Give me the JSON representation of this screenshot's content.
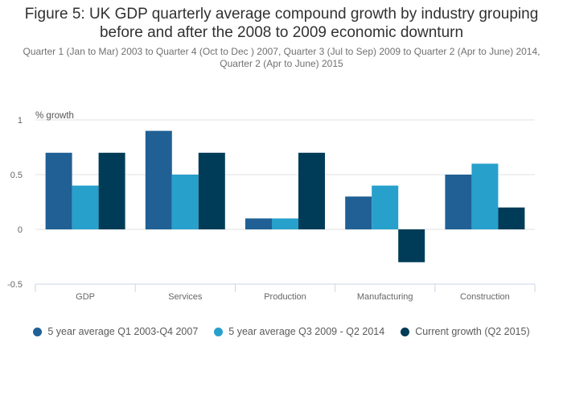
{
  "chart_data": {
    "type": "bar",
    "title": "Figure 5: UK GDP quarterly average compound growth by industry grouping before and after the 2008 to 2009 economic downturn",
    "title_lines": [
      "Figure 5: UK GDP quarterly average compound growth by industry grouping",
      "before and after the 2008 to 2009 economic downturn"
    ],
    "subtitle": "Quarter 1 (Jan to Mar) 2003 to Quarter 4 (Oct to Dec ) 2007, Quarter 3 (Jul to Sep) 2009 to Quarter 2 (Apr to June) 2014, Quarter 2 (Apr to June) 2015",
    "xlabel": "",
    "ylabel": "% growth",
    "ylim": [
      -0.5,
      1
    ],
    "yticks": [
      1,
      0.5,
      0,
      -0.5
    ],
    "ytick_labels": [
      "1",
      "0.5",
      "0",
      "-0.5"
    ],
    "grid": true,
    "legend_position": "bottom",
    "categories": [
      "GDP",
      "Services",
      "Production",
      "Manufacturing",
      "Construction"
    ],
    "series": [
      {
        "name": "5 year average Q1 2003-Q4 2007",
        "color": "#206095",
        "values": [
          0.7,
          0.9,
          0.1,
          0.3,
          0.5
        ]
      },
      {
        "name": "5 year average Q3 2009 - Q2 2014",
        "color": "#27a0cc",
        "values": [
          0.4,
          0.5,
          0.1,
          0.4,
          0.6
        ]
      },
      {
        "name": "Current growth (Q2 2015)",
        "color": "#003c57",
        "values": [
          0.7,
          0.7,
          0.7,
          -0.3,
          0.2
        ]
      }
    ]
  }
}
